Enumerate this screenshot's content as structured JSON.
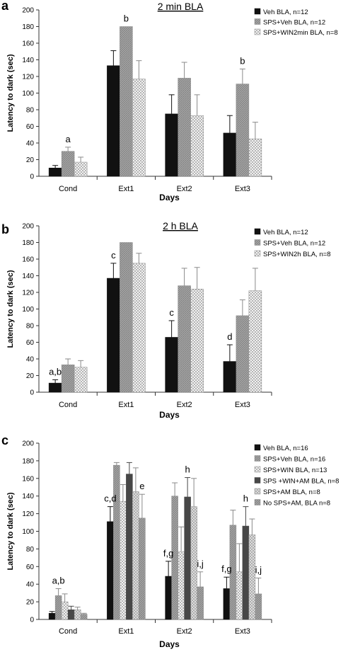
{
  "colors": {
    "veh": "#111111",
    "sps_veh": "#9a9a9a",
    "win": "#d4d4d4",
    "win_am": "#474747",
    "sps_am": "#c2c2c2",
    "no_sps_am": "#8c8c8c",
    "axis": "#333333"
  },
  "chart_data": [
    {
      "type": "bar",
      "panel_letter": "a",
      "title": "2 min BLA",
      "xlabel": "Days",
      "ylabel": "Latency to dark (sec)",
      "ylim": [
        0,
        200
      ],
      "yticks": [
        0,
        20,
        40,
        60,
        80,
        100,
        120,
        140,
        160,
        180,
        200
      ],
      "categories": [
        "Cond",
        "Ext1",
        "Ext2",
        "Ext3"
      ],
      "legend_position": "top-right",
      "series": [
        {
          "name": "Veh BLA, n=12",
          "color_key": "veh",
          "pattern": "solid",
          "values": [
            10,
            133,
            75,
            52
          ],
          "errors": [
            3,
            18,
            23,
            21
          ]
        },
        {
          "name": "SPS+Veh BLA, n=12",
          "color_key": "sps_veh",
          "pattern": "hatch",
          "values": [
            30,
            180,
            118,
            111
          ],
          "errors": [
            5,
            0,
            19,
            18
          ]
        },
        {
          "name": "SPS+WIN2min BLA, n=8",
          "color_key": "win",
          "pattern": "dots",
          "values": [
            17,
            117,
            73,
            45
          ],
          "errors": [
            6,
            22,
            25,
            20
          ]
        }
      ],
      "annotations": [
        {
          "category": 0,
          "series": 1,
          "text": "a"
        },
        {
          "category": 1,
          "series": 1,
          "text": "b"
        },
        {
          "category": 3,
          "series": 1,
          "text": "b"
        }
      ]
    },
    {
      "type": "bar",
      "panel_letter": "b",
      "title": "2 h BLA",
      "xlabel": "Days",
      "ylabel": "Latency to dark (sec)",
      "ylim": [
        0,
        200
      ],
      "yticks": [
        0,
        20,
        40,
        60,
        80,
        100,
        120,
        140,
        160,
        180,
        200
      ],
      "categories": [
        "Cond",
        "Ext1",
        "Ext2",
        "Ext3"
      ],
      "legend_position": "top-right",
      "series": [
        {
          "name": "Veh BLA, n=12",
          "color_key": "veh",
          "pattern": "solid",
          "values": [
            11,
            137,
            66,
            37
          ],
          "errors": [
            4,
            18,
            20,
            20
          ]
        },
        {
          "name": "SPS+Veh BLA, n=12",
          "color_key": "sps_veh",
          "pattern": "hatch",
          "values": [
            33,
            180,
            128,
            92
          ],
          "errors": [
            7,
            0,
            21,
            19
          ]
        },
        {
          "name": "SPS+WIN2h BLA, n=8",
          "color_key": "win",
          "pattern": "dots",
          "values": [
            30,
            155,
            124,
            122
          ],
          "errors": [
            8,
            12,
            26,
            27
          ]
        }
      ],
      "annotations": [
        {
          "category": 0,
          "series": 0,
          "text": "a,b"
        },
        {
          "category": 1,
          "series": 0,
          "text": "c"
        },
        {
          "category": 2,
          "series": 0,
          "text": "c"
        },
        {
          "category": 3,
          "series": 0,
          "text": "d"
        }
      ]
    },
    {
      "type": "bar",
      "panel_letter": "c",
      "title": "",
      "xlabel": "Days",
      "ylabel": "Latency to dark (sec)",
      "ylim": [
        0,
        200
      ],
      "yticks": [
        0,
        20,
        40,
        60,
        80,
        100,
        120,
        140,
        160,
        180,
        200
      ],
      "categories": [
        "Cond",
        "Ext1",
        "Ext2",
        "Ext3"
      ],
      "legend_position": "top-right",
      "series": [
        {
          "name": "Veh BLA, n=16",
          "color_key": "veh",
          "pattern": "solid",
          "values": [
            7,
            111,
            49,
            35
          ],
          "errors": [
            2,
            17,
            17,
            13
          ]
        },
        {
          "name": "SPS+Veh BLA, n=16",
          "color_key": "sps_veh",
          "pattern": "hatch",
          "values": [
            27,
            175,
            140,
            107
          ],
          "errors": [
            8,
            3,
            15,
            17
          ]
        },
        {
          "name": "SPS+WIN BLA, n=13",
          "color_key": "win",
          "pattern": "dots",
          "values": [
            20,
            134,
            77,
            54
          ],
          "errors": [
            9,
            19,
            28,
            32
          ]
        },
        {
          "name": "SPS +WIN+AM BLA, n=8",
          "color_key": "win_am",
          "pattern": "solid",
          "values": [
            11,
            165,
            139,
            106
          ],
          "errors": [
            4,
            13,
            22,
            22
          ]
        },
        {
          "name": "SPS+AM BLA, n=8",
          "color_key": "sps_am",
          "pattern": "cross",
          "values": [
            11,
            145,
            128,
            96
          ],
          "errors": [
            3,
            27,
            32,
            18
          ]
        },
        {
          "name": "No SPS+AM, BLA n=8",
          "color_key": "no_sps_am",
          "pattern": "hatch",
          "values": [
            6,
            115,
            37,
            29
          ],
          "errors": [
            1,
            27,
            17,
            18
          ]
        }
      ],
      "annotations": [
        {
          "category": 0,
          "series": 1,
          "text": "a,b"
        },
        {
          "category": 1,
          "series": 0,
          "text": "c,d"
        },
        {
          "category": 1,
          "series": 5,
          "text": "e"
        },
        {
          "category": 2,
          "series": 0,
          "text": "f,g"
        },
        {
          "category": 2,
          "series": 3,
          "text": "h"
        },
        {
          "category": 2,
          "series": 5,
          "text": "i,j"
        },
        {
          "category": 3,
          "series": 0,
          "text": "f,g"
        },
        {
          "category": 3,
          "series": 3,
          "text": "h"
        },
        {
          "category": 3,
          "series": 5,
          "text": "i,j"
        }
      ]
    }
  ]
}
